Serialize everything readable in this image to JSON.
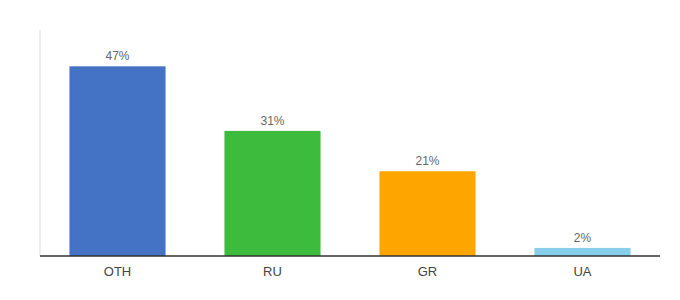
{
  "chart_data": {
    "type": "bar",
    "categories": [
      "OTH",
      "RU",
      "GR",
      "UA"
    ],
    "values": [
      47,
      31,
      21,
      2
    ],
    "value_labels": [
      "47%",
      "31%",
      "21%",
      "2%"
    ],
    "colors": [
      "#4472C4",
      "#3DBB3D",
      "#FFA500",
      "#87CEEB"
    ],
    "ylim": [
      0,
      56
    ],
    "data_labels": true,
    "tick_labels": "x",
    "grid": false
  }
}
